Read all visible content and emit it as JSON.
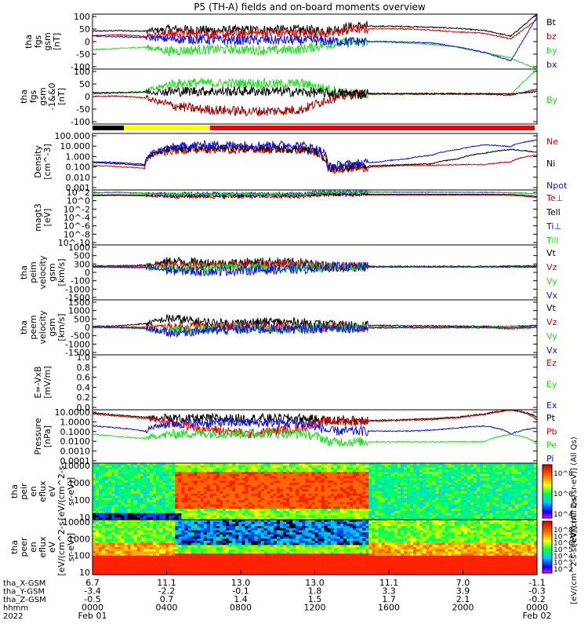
{
  "title": "P5 (TH-A) fields and on-board moments overview",
  "colors": {
    "black": "#000000",
    "red": "#e00000",
    "green": "#22dd22",
    "blue": "#1010e0",
    "darkred": "#a00000",
    "yellow": "#ffff00"
  },
  "x_axis": {
    "row_labels": [
      "tha_X-GSM",
      "tha_Y-GSM",
      "tha_Z-GSM",
      "hhmm",
      "2022"
    ],
    "ticks": [
      {
        "v": [
          "6.7",
          "-3.4",
          "-0.5",
          "0000",
          "Feb 01"
        ]
      },
      {
        "v": [
          "11.1",
          "-2.2",
          "0.7",
          "0400",
          ""
        ]
      },
      {
        "v": [
          "13.0",
          "-0.1",
          "1.4",
          "0800",
          ""
        ]
      },
      {
        "v": [
          "13.0",
          "1.8",
          "1.5",
          "1200",
          ""
        ]
      },
      {
        "v": [
          "11.1",
          "3.3",
          "1.7",
          "1600",
          ""
        ]
      },
      {
        "v": [
          "7.0",
          "3.9",
          "2.1",
          "2000",
          ""
        ]
      },
      {
        "v": [
          "-1.1",
          "-0.3",
          "-0.2",
          "0000",
          "Feb 02"
        ]
      }
    ]
  },
  "chart_data": [
    {
      "type": "line",
      "ylabel": [
        "tha",
        "fgs",
        "gsm",
        "[nT]"
      ],
      "ylim": [
        -100,
        100
      ],
      "yticks": [
        "100",
        "50",
        "0",
        "-50",
        "-100"
      ],
      "series": [
        {
          "name": "Bt",
          "color": "#000000",
          "values": [
            38,
            40,
            38,
            45,
            42,
            40,
            42,
            44,
            42,
            40,
            55,
            56,
            55,
            52,
            48,
            40,
            20,
            100
          ]
        },
        {
          "name": "bz",
          "color": "#e00000",
          "values": [
            22,
            25,
            20,
            30,
            28,
            26,
            30,
            32,
            30,
            28,
            45,
            48,
            46,
            42,
            35,
            30,
            10,
            80
          ]
        },
        {
          "name": "by",
          "color": "#22dd22",
          "values": [
            -30,
            -25,
            -20,
            -35,
            -30,
            -28,
            -30,
            -32,
            -28,
            -10,
            -2,
            0,
            -5,
            -10,
            -20,
            -40,
            -60,
            -100
          ]
        },
        {
          "name": "bx",
          "color": "#1010e0",
          "values": [
            20,
            18,
            15,
            10,
            8,
            5,
            5,
            5,
            4,
            2,
            0,
            0,
            -2,
            -5,
            -20,
            -40,
            -70,
            90
          ]
        }
      ]
    },
    {
      "type": "line",
      "ylabel": [
        "tha",
        "fgs",
        "gsm",
        "-1&&0",
        "[nT]"
      ],
      "ylim": [
        -120,
        100
      ],
      "yticks": [
        "100",
        "50",
        "0",
        "-50",
        "-100"
      ],
      "series": [
        {
          "name": "By",
          "color": "#22dd22",
          "values": [
            0,
            5,
            10,
            40,
            45,
            42,
            44,
            40,
            42,
            20,
            0,
            0,
            0,
            0,
            0,
            0,
            0,
            100
          ]
        },
        {
          "name": "",
          "color": "#a00000",
          "values": [
            -10,
            -8,
            -15,
            -45,
            -60,
            -65,
            -70,
            -68,
            -62,
            -20,
            0,
            0,
            0,
            0,
            0,
            0,
            -5,
            20
          ]
        },
        {
          "name": "",
          "color": "#000000",
          "values": [
            5,
            6,
            8,
            10,
            12,
            10,
            12,
            10,
            8,
            4,
            2,
            2,
            2,
            2,
            2,
            2,
            0,
            10
          ]
        }
      ]
    },
    {
      "type": "line",
      "scale": "log",
      "ylabel": [
        "Density",
        "[cm^-3]"
      ],
      "ylim": [
        0.001,
        1000
      ],
      "yticks": [
        "100.000",
        "10.000",
        "1.000",
        "0.100",
        "0.010",
        "0.001"
      ],
      "series": [
        {
          "name": "Ne",
          "color": "#e00000",
          "values": [
            0.4,
            0.3,
            0.2,
            15,
            20,
            20,
            22,
            20,
            18,
            0.15,
            0.2,
            0.3,
            0.4,
            0.4,
            0.5,
            0.5,
            1.0,
            5
          ]
        },
        {
          "name": "Ni",
          "color": "#000000",
          "values": [
            0.8,
            0.6,
            0.4,
            20,
            25,
            25,
            25,
            24,
            22,
            0.2,
            0.3,
            0.4,
            0.5,
            0.6,
            2,
            8,
            20,
            10
          ]
        },
        {
          "name": "Npot",
          "color": "#1010e0",
          "values": [
            1.0,
            0.8,
            0.5,
            30,
            60,
            60,
            60,
            60,
            55,
            0.3,
            0.6,
            1.0,
            2.0,
            5.0,
            20,
            60,
            40,
            200
          ]
        }
      ]
    },
    {
      "type": "line",
      "scale": "log",
      "ylabel": [
        "magt3",
        "[eV]"
      ],
      "ylim": [
        1e-10,
        10000
      ],
      "yticks": [
        "10^2",
        "10^0",
        "10^-2",
        "10^-4",
        "10^-6",
        "10^-8",
        "10^-10"
      ],
      "series": [
        {
          "name": "Te⊥",
          "color": "#e00000",
          "values": [
            300,
            400,
            300,
            200,
            200,
            200,
            200,
            200,
            200,
            600,
            500,
            500,
            500,
            500,
            500,
            500,
            400,
            100
          ]
        },
        {
          "name": "Tell",
          "color": "#000000",
          "values": [
            500,
            600,
            500,
            400,
            400,
            400,
            400,
            400,
            400,
            900,
            800,
            800,
            800,
            800,
            800,
            800,
            700,
            200
          ]
        },
        {
          "name": "Ti⊥",
          "color": "#1010e0",
          "values": [
            2000,
            2500,
            1500,
            1000,
            1000,
            1000,
            1000,
            1000,
            1000,
            3000,
            3000,
            3000,
            2800,
            2800,
            2600,
            2500,
            2000,
            1000
          ]
        },
        {
          "name": "Till",
          "color": "#22dd22",
          "values": [
            1500,
            2000,
            1200,
            800,
            800,
            800,
            800,
            800,
            800,
            2500,
            2500,
            2500,
            2300,
            2300,
            2200,
            2000,
            1800,
            900
          ]
        }
      ]
    },
    {
      "type": "line",
      "ylabel": [
        "tha",
        "peim",
        "velocity",
        "gsm",
        "[km/s]"
      ],
      "ylim": [
        -1500,
        1000
      ],
      "yticks": [
        "1000",
        "500",
        "300",
        "0",
        "-100",
        "-1000",
        "-1500"
      ],
      "series": [
        {
          "name": "Vt",
          "color": "#000000",
          "values": [
            40,
            50,
            80,
            250,
            200,
            150,
            200,
            220,
            180,
            30,
            20,
            20,
            20,
            20,
            20,
            20,
            30,
            50
          ]
        },
        {
          "name": "Vz",
          "color": "#e00000",
          "values": [
            10,
            20,
            40,
            100,
            80,
            60,
            90,
            100,
            80,
            10,
            5,
            5,
            5,
            5,
            5,
            5,
            10,
            20
          ]
        },
        {
          "name": "Vy",
          "color": "#22dd22",
          "values": [
            -10,
            -20,
            -40,
            -60,
            -40,
            -20,
            -30,
            -30,
            -20,
            -5,
            0,
            0,
            0,
            0,
            0,
            0,
            -5,
            -10
          ]
        },
        {
          "name": "Vx",
          "color": "#1010e0",
          "values": [
            0,
            -10,
            -30,
            -150,
            -200,
            -180,
            -150,
            -120,
            -100,
            -5,
            0,
            0,
            0,
            0,
            0,
            0,
            0,
            0
          ]
        }
      ]
    },
    {
      "type": "line",
      "ylabel": [
        "tha",
        "peem",
        "velocity",
        "gsm",
        "[km/s]"
      ],
      "ylim": [
        -1500,
        1500
      ],
      "yticks": [
        "1500",
        "1000",
        "500",
        "0",
        "-500",
        "-1000",
        "-1500"
      ],
      "series": [
        {
          "name": "Vt",
          "color": "#000000",
          "values": [
            50,
            80,
            200,
            500,
            300,
            200,
            250,
            280,
            250,
            120,
            100,
            100,
            80,
            80,
            60,
            60,
            50,
            100
          ]
        },
        {
          "name": "Vz",
          "color": "#e00000",
          "values": [
            0,
            10,
            20,
            30,
            20,
            10,
            10,
            10,
            10,
            5,
            0,
            0,
            0,
            0,
            0,
            0,
            -80,
            0
          ]
        },
        {
          "name": "Vy",
          "color": "#22dd22",
          "values": [
            -10,
            -20,
            -80,
            -200,
            -100,
            -80,
            -80,
            -80,
            -60,
            -20,
            -10,
            -10,
            -10,
            -10,
            -10,
            -10,
            60,
            0
          ]
        },
        {
          "name": "Vx",
          "color": "#1010e0",
          "values": [
            0,
            -10,
            -50,
            -300,
            -200,
            -150,
            -100,
            -100,
            -80,
            -40,
            -30,
            -30,
            -20,
            -20,
            -20,
            -20,
            -10,
            0
          ]
        }
      ]
    },
    {
      "type": "line",
      "ylabel": [
        "E=-VxB",
        "[mV/m]"
      ],
      "ylim": [
        0,
        1
      ],
      "yticks": [
        "1.0",
        "0.8",
        "0.6",
        "0.4",
        "0.2",
        "0.0"
      ],
      "series": [
        {
          "name": "Ez",
          "color": "#e00000",
          "values": []
        },
        {
          "name": "Ey",
          "color": "#22dd22",
          "values": []
        },
        {
          "name": "Ex",
          "color": "#1010e0",
          "values": []
        }
      ]
    },
    {
      "type": "line",
      "scale": "log",
      "ylabel": [
        "Pressure",
        "[nPa]"
      ],
      "ylim": [
        0.0001,
        10
      ],
      "yticks": [
        "10.0000",
        "1.0000",
        "0.1000",
        "0.0100",
        "0.0010",
        "0.0001"
      ],
      "series": [
        {
          "name": "Pt",
          "color": "#000000",
          "values": [
            5,
            3,
            2,
            1.5,
            1.5,
            1.5,
            1.5,
            1.6,
            1.5,
            1.0,
            1.0,
            1.0,
            1.2,
            1.5,
            2,
            4,
            10,
            2
          ]
        },
        {
          "name": "Pb",
          "color": "#e00000",
          "values": [
            4,
            2.5,
            1.5,
            0.6,
            0.2,
            0.1,
            0.05,
            0.1,
            0.2,
            0.8,
            0.9,
            0.9,
            1.0,
            1.2,
            1.8,
            3.5,
            9,
            1
          ]
        },
        {
          "name": "Pe",
          "color": "#22dd22",
          "values": [
            0.05,
            0.03,
            0.02,
            0.05,
            0.06,
            0.06,
            0.06,
            0.06,
            0.06,
            0.01,
            0.01,
            0.01,
            0.01,
            0.01,
            0.01,
            0.01,
            0.05,
            0.005
          ]
        },
        {
          "name": "Pi",
          "color": "#1010e0",
          "values": [
            0.3,
            0.2,
            0.1,
            0.5,
            0.6,
            0.6,
            0.6,
            0.6,
            0.5,
            0.1,
            0.1,
            0.1,
            0.1,
            0.12,
            0.2,
            0.3,
            0.05,
            0.2
          ]
        }
      ]
    },
    {
      "type": "heatmap",
      "ylabel": [
        "tha",
        "peir",
        "en",
        "eflux",
        "eV",
        "[eV/(cm^2-s-",
        "sr-eV)]"
      ],
      "ylim": [
        5,
        30000
      ],
      "yticks": [
        "10000",
        "1000",
        "100",
        "10"
      ],
      "colorbar": {
        "ticks": [
          "10^8",
          "10^6",
          "10^4"
        ]
      }
    },
    {
      "type": "heatmap",
      "ylabel": [
        "tha",
        "peer",
        "en",
        "eflux",
        "eV",
        "[eV/(cm^2-s-",
        "sr-eV)]"
      ],
      "ylim": [
        5,
        30000
      ],
      "yticks": [
        "10000",
        "1000",
        "100",
        "10"
      ],
      "colorbar": {
        "ticks": [
          "10^8",
          "10^7",
          "10^6",
          "10^5",
          "10^4",
          "10^3",
          "10^2"
        ]
      }
    }
  ],
  "colorbar_label": "[eV/(cm^2-s-sr-eV)] (All Qs)",
  "colorbar_label_top": "[eV/(cm^2-s-sr-eV)] (All Qs)"
}
